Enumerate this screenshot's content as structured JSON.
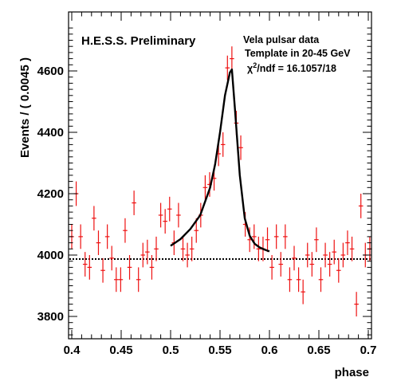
{
  "chart_data": {
    "type": "scatter",
    "title": "",
    "xlabel": "phase",
    "ylabel": "Events / ( 0.0045 )",
    "xlim": [
      0.397,
      0.703
    ],
    "ylim": [
      3735,
      4755
    ],
    "grid": false,
    "x_ticks": [
      0.4,
      0.45,
      0.5,
      0.55,
      0.6,
      0.65,
      0.7
    ],
    "x_tick_labels": [
      "0.4",
      "0.45",
      "0.5",
      "0.55",
      "0.6",
      "0.65",
      "0.7"
    ],
    "y_ticks": [
      3800,
      4000,
      4200,
      4400,
      4600
    ],
    "y_tick_labels": [
      "3800",
      "4000",
      "4200",
      "4400",
      "4600"
    ],
    "annotations": {
      "preliminary": "H.E.S.S. Preliminary",
      "dataset": "Vela pulsar data",
      "template": "Template in 20-45 GeV",
      "chi2_prefix": "χ",
      "chi2_sup": "2",
      "chi2_suffix": "/ndf = 16.1057/18"
    },
    "colors": {
      "data": "#ee1111",
      "fit": "#000000",
      "baseline": "#000000"
    },
    "baseline": 3987,
    "fit_curve": {
      "x": [
        0.5,
        0.51,
        0.52,
        0.53,
        0.54,
        0.545,
        0.55,
        0.555,
        0.56,
        0.562,
        0.565,
        0.57,
        0.575,
        0.58,
        0.585,
        0.59,
        0.595,
        0.6
      ],
      "y": [
        4030,
        4052,
        4085,
        4130,
        4220,
        4295,
        4400,
        4520,
        4595,
        4605,
        4480,
        4260,
        4120,
        4063,
        4037,
        4025,
        4018,
        4012
      ]
    },
    "series": [
      {
        "name": "data",
        "x": [
          0.4,
          0.4045,
          0.409,
          0.4135,
          0.418,
          0.4225,
          0.427,
          0.4315,
          0.436,
          0.4405,
          0.445,
          0.4495,
          0.454,
          0.4585,
          0.463,
          0.4675,
          0.472,
          0.4765,
          0.481,
          0.4855,
          0.49,
          0.4945,
          0.499,
          0.5035,
          0.508,
          0.5125,
          0.517,
          0.5215,
          0.526,
          0.5305,
          0.535,
          0.5395,
          0.544,
          0.5485,
          0.553,
          0.5575,
          0.562,
          0.5665,
          0.571,
          0.5755,
          0.58,
          0.5845,
          0.589,
          0.5935,
          0.598,
          0.6025,
          0.607,
          0.6115,
          0.616,
          0.6205,
          0.625,
          0.6295,
          0.634,
          0.6385,
          0.643,
          0.6475,
          0.652,
          0.6565,
          0.661,
          0.6655,
          0.67,
          0.6745,
          0.679,
          0.6835,
          0.688,
          0.6925,
          0.697,
          0.7015
        ],
        "y": [
          4060,
          4200,
          4060,
          3970,
          3960,
          4120,
          4040,
          3950,
          4060,
          3990,
          3920,
          3920,
          4080,
          3960,
          4170,
          3920,
          4000,
          4010,
          3960,
          4020,
          4130,
          4110,
          4150,
          4040,
          4130,
          4020,
          4000,
          4020,
          4080,
          4130,
          4220,
          4230,
          4250,
          4330,
          4360,
          4610,
          4640,
          4430,
          4350,
          4100,
          4050,
          4060,
          4020,
          4020,
          4050,
          3960,
          4060,
          3970,
          4060,
          3920,
          3990,
          3920,
          3880,
          4000,
          3970,
          4050,
          3920,
          4000,
          3970,
          4010,
          3950,
          4000,
          4040,
          4020,
          3840,
          4160,
          4000,
          4020
        ],
        "err": [
          40,
          40,
          40,
          40,
          40,
          40,
          40,
          40,
          40,
          40,
          40,
          40,
          40,
          40,
          40,
          40,
          40,
          40,
          40,
          40,
          40,
          40,
          40,
          40,
          40,
          40,
          40,
          40,
          40,
          40,
          40,
          40,
          40,
          40,
          40,
          40,
          40,
          40,
          40,
          40,
          40,
          40,
          40,
          40,
          40,
          40,
          40,
          40,
          40,
          40,
          40,
          40,
          40,
          40,
          40,
          40,
          40,
          40,
          40,
          40,
          40,
          40,
          40,
          40,
          40,
          40,
          40,
          40
        ],
        "xerr": 0.00225
      }
    ]
  }
}
